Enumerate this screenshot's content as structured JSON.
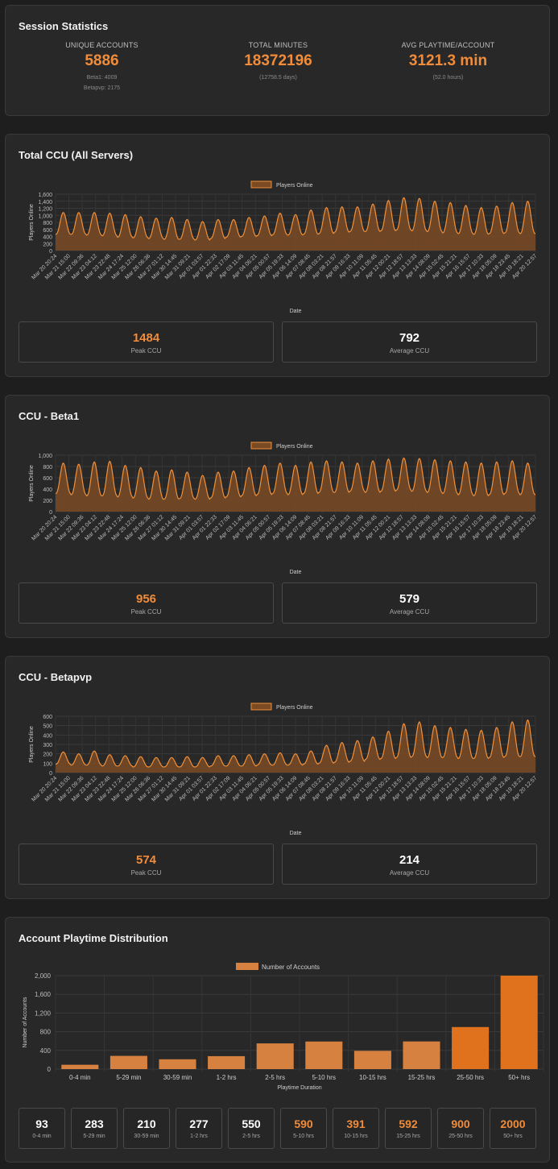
{
  "session": {
    "title": "Session Statistics",
    "unique_accounts": {
      "label": "UNIQUE ACCOUNTS",
      "value": "5886",
      "sub1": "Beta1: 4009",
      "sub2": "Betapvp: 2175"
    },
    "total_minutes": {
      "label": "TOTAL MINUTES",
      "value": "18372196",
      "sub1": "(12758.5 days)"
    },
    "avg_playtime": {
      "label": "AVG PLAYTIME/ACCOUNT",
      "value": "3121.3 min",
      "sub1": "(52.0 hours)"
    }
  },
  "ccu_total": {
    "title": "Total CCU (All Servers)",
    "peak_value": "1484",
    "peak_label": "Peak CCU",
    "avg_value": "792",
    "avg_label": "Average CCU"
  },
  "ccu_beta1": {
    "title": "CCU - Beta1",
    "peak_value": "956",
    "peak_label": "Peak CCU",
    "avg_value": "579",
    "avg_label": "Average CCU"
  },
  "ccu_betapvp": {
    "title": "CCU - Betapvp",
    "peak_value": "574",
    "peak_label": "Peak CCU",
    "avg_value": "214",
    "avg_label": "Average CCU"
  },
  "distribution": {
    "title": "Account Playtime Distribution",
    "boxes": [
      {
        "value": "93",
        "label": "0-4 min"
      },
      {
        "value": "283",
        "label": "5-29 min"
      },
      {
        "value": "210",
        "label": "30-59 min"
      },
      {
        "value": "277",
        "label": "1-2 hrs"
      },
      {
        "value": "550",
        "label": "2-5 hrs"
      },
      {
        "value": "590",
        "label": "5-10 hrs"
      },
      {
        "value": "391",
        "label": "10-15 hrs"
      },
      {
        "value": "592",
        "label": "15-25 hrs"
      },
      {
        "value": "900",
        "label": "25-50 hrs"
      },
      {
        "value": "2000",
        "label": "50+ hrs"
      }
    ]
  },
  "colors": {
    "accent": "#f08c3a",
    "line": "#f0903a",
    "fill": "#7a4a24",
    "bar_light": "#d6813f",
    "bar_dark": "#e0711d"
  },
  "chart_data": [
    {
      "type": "area",
      "title": "Total CCU (All Servers)",
      "legend": "Players Online",
      "xlabel": "Date",
      "ylabel": "Players Online",
      "ylim": [
        0,
        1600
      ],
      "yticks": [
        0,
        200,
        400,
        600,
        800,
        "1,000",
        "1,200",
        "1,400",
        "1,600"
      ],
      "days": 31,
      "day_highs": [
        1080,
        1080,
        1080,
        1060,
        1020,
        960,
        920,
        940,
        880,
        820,
        880,
        880,
        940,
        980,
        1060,
        1020,
        1150,
        1220,
        1240,
        1240,
        1320,
        1420,
        1500,
        1480,
        1400,
        1360,
        1280,
        1220,
        1260,
        1360,
        1400
      ],
      "day_lows": [
        460,
        460,
        440,
        420,
        380,
        360,
        340,
        320,
        320,
        300,
        340,
        380,
        400,
        420,
        450,
        440,
        460,
        480,
        520,
        540,
        540,
        560,
        580,
        560,
        540,
        500,
        480,
        460,
        480,
        500,
        480
      ],
      "x_tick_labels": [
        "Mar 20 20:24",
        "Mar 21 15:00",
        "Mar 22 09:36",
        "Mar 23 04:12",
        "Mar 23 22:48",
        "Mar 24 17:24",
        "Mar 25 12:00",
        "Mar 26 06:36",
        "Mar 27 01:12",
        "Mar 30 14:45",
        "Mar 31 09:21",
        "Apr 01 03:57",
        "Apr 01 22:33",
        "Apr 02 17:09",
        "Apr 03 11:45",
        "Apr 04 06:21",
        "Apr 05 00:57",
        "Apr 05 19:33",
        "Apr 06 14:09",
        "Apr 07 08:45",
        "Apr 08 03:21",
        "Apr 08 21:57",
        "Apr 09 16:33",
        "Apr 10 11:09",
        "Apr 11 05:45",
        "Apr 12 00:21",
        "Apr 12 18:57",
        "Apr 13 13:33",
        "Apr 14 08:09",
        "Apr 15 02:45",
        "Apr 15 21:21",
        "Apr 16 15:57",
        "Apr 17 10:33",
        "Apr 18 05:09",
        "Apr 18 23:45",
        "Apr 19 18:21",
        "Apr 20 12:57"
      ]
    },
    {
      "type": "area",
      "title": "CCU - Beta1",
      "legend": "Players Online",
      "xlabel": "Date",
      "ylabel": "Players Online",
      "ylim": [
        0,
        1000
      ],
      "yticks": [
        0,
        200,
        400,
        600,
        800,
        "1,000"
      ],
      "days": 31,
      "day_highs": [
        860,
        840,
        880,
        890,
        820,
        780,
        720,
        740,
        700,
        640,
        700,
        720,
        780,
        820,
        860,
        820,
        880,
        900,
        880,
        860,
        900,
        930,
        950,
        940,
        920,
        900,
        880,
        860,
        880,
        900,
        860
      ],
      "day_lows": [
        320,
        300,
        280,
        280,
        260,
        240,
        220,
        220,
        230,
        220,
        240,
        260,
        280,
        300,
        320,
        300,
        320,
        340,
        340,
        360,
        340,
        360,
        380,
        360,
        340,
        320,
        300,
        280,
        300,
        320,
        300
      ],
      "x_tick_labels": [
        "Mar 20 20:24",
        "Mar 21 15:00",
        "Mar 22 09:36",
        "Mar 23 04:12",
        "Mar 23 22:48",
        "Mar 24 17:24",
        "Mar 25 12:00",
        "Mar 26 06:36",
        "Mar 27 01:12",
        "Mar 30 14:45",
        "Mar 31 09:21",
        "Apr 01 03:57",
        "Apr 01 22:33",
        "Apr 02 17:09",
        "Apr 03 11:45",
        "Apr 04 06:21",
        "Apr 05 00:57",
        "Apr 05 19:33",
        "Apr 06 14:09",
        "Apr 07 08:45",
        "Apr 08 03:21",
        "Apr 08 21:57",
        "Apr 09 16:33",
        "Apr 10 11:09",
        "Apr 11 05:45",
        "Apr 12 00:21",
        "Apr 12 18:57",
        "Apr 13 13:33",
        "Apr 14 08:09",
        "Apr 15 02:45",
        "Apr 15 21:21",
        "Apr 16 15:57",
        "Apr 17 10:33",
        "Apr 18 05:09",
        "Apr 18 23:45",
        "Apr 19 18:21",
        "Apr 20 12:57"
      ]
    },
    {
      "type": "area",
      "title": "CCU - Betapvp",
      "legend": "Players Online",
      "xlabel": "Date",
      "ylabel": "Players Online",
      "ylim": [
        0,
        600
      ],
      "yticks": [
        0,
        100,
        200,
        300,
        400,
        500,
        600
      ],
      "days": 31,
      "day_highs": [
        220,
        200,
        230,
        190,
        180,
        170,
        160,
        160,
        170,
        160,
        180,
        180,
        190,
        200,
        210,
        200,
        230,
        290,
        320,
        340,
        380,
        440,
        520,
        540,
        500,
        480,
        460,
        450,
        480,
        540,
        560
      ],
      "day_lows": [
        90,
        80,
        80,
        70,
        70,
        60,
        60,
        60,
        60,
        60,
        70,
        70,
        70,
        80,
        80,
        80,
        90,
        100,
        110,
        120,
        140,
        150,
        160,
        170,
        160,
        160,
        150,
        150,
        160,
        170,
        170
      ],
      "x_tick_labels": [
        "Mar 20 20:24",
        "Mar 21 15:00",
        "Mar 22 09:36",
        "Mar 23 04:12",
        "Mar 23 22:48",
        "Mar 24 17:24",
        "Mar 25 12:00",
        "Mar 26 06:36",
        "Mar 27 01:12",
        "Mar 30 14:45",
        "Mar 31 09:21",
        "Apr 01 03:57",
        "Apr 01 22:33",
        "Apr 02 17:09",
        "Apr 03 11:45",
        "Apr 04 06:21",
        "Apr 05 00:57",
        "Apr 05 19:33",
        "Apr 06 14:09",
        "Apr 07 08:45",
        "Apr 08 03:21",
        "Apr 08 21:57",
        "Apr 09 16:33",
        "Apr 10 11:09",
        "Apr 11 05:45",
        "Apr 12 00:21",
        "Apr 12 18:57",
        "Apr 13 13:33",
        "Apr 14 08:09",
        "Apr 15 02:45",
        "Apr 15 21:21",
        "Apr 16 15:57",
        "Apr 17 10:33",
        "Apr 18 05:09",
        "Apr 18 23:45",
        "Apr 19 18:21",
        "Apr 20 12:57"
      ]
    },
    {
      "type": "bar",
      "title": "Account Playtime Distribution",
      "legend": "Number of Accounts",
      "xlabel": "Playtime Duration",
      "ylabel": "Number of Accounts",
      "ylim": [
        0,
        2000
      ],
      "yticks": [
        0,
        400,
        800,
        "1,200",
        "1,600",
        "2,000"
      ],
      "categories": [
        "0-4 min",
        "5-29 min",
        "30-59 min",
        "1-2 hrs",
        "2-5 hrs",
        "5-10 hrs",
        "10-15 hrs",
        "15-25 hrs",
        "25-50 hrs",
        "50+ hrs"
      ],
      "values": [
        93,
        283,
        210,
        277,
        550,
        590,
        391,
        592,
        900,
        2000
      ],
      "highlight": [
        false,
        false,
        false,
        false,
        false,
        false,
        false,
        false,
        true,
        true
      ]
    }
  ]
}
